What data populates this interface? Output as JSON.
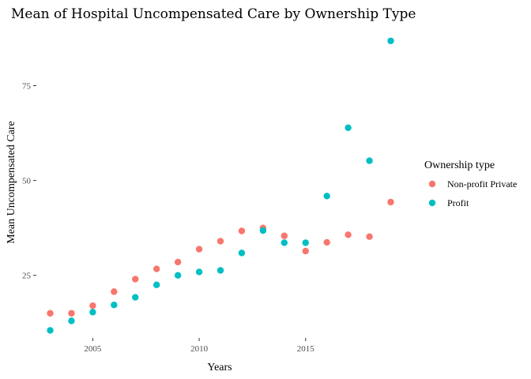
{
  "chart_data": {
    "type": "scatter",
    "title": "Mean of Hospital Uncompensated Care by Ownership Type",
    "xlabel": "Years",
    "ylabel": "Mean Uncompensated Care",
    "xlim": [
      2002.35,
      2019.65
    ],
    "ylim": [
      8.5,
      90.5
    ],
    "x_ticks": [
      2005,
      2010,
      2015
    ],
    "y_ticks": [
      25,
      50,
      75
    ],
    "grid": false,
    "legend": {
      "title": "Ownership type",
      "placement": "right"
    },
    "series": [
      {
        "name": "Non-profit Private",
        "color": "#F8766D",
        "x": [
          2003,
          2004,
          2005,
          2006,
          2007,
          2008,
          2009,
          2010,
          2011,
          2012,
          2013,
          2014,
          2015,
          2016,
          2017,
          2018,
          2019
        ],
        "y": [
          15.0,
          15.0,
          17.0,
          20.7,
          24.0,
          26.7,
          28.5,
          31.9,
          34.0,
          36.7,
          37.5,
          35.4,
          31.4,
          33.7,
          35.7,
          35.2,
          44.3
        ]
      },
      {
        "name": "Profit",
        "color": "#00BFC4",
        "x": [
          2003,
          2004,
          2005,
          2006,
          2007,
          2008,
          2009,
          2010,
          2011,
          2012,
          2013,
          2014,
          2015,
          2016,
          2017,
          2018,
          2019
        ],
        "y": [
          10.5,
          13.0,
          15.3,
          17.2,
          19.2,
          22.5,
          25.0,
          25.9,
          26.3,
          30.9,
          36.8,
          33.6,
          33.6,
          45.9,
          63.9,
          55.2,
          86.8
        ]
      }
    ]
  }
}
